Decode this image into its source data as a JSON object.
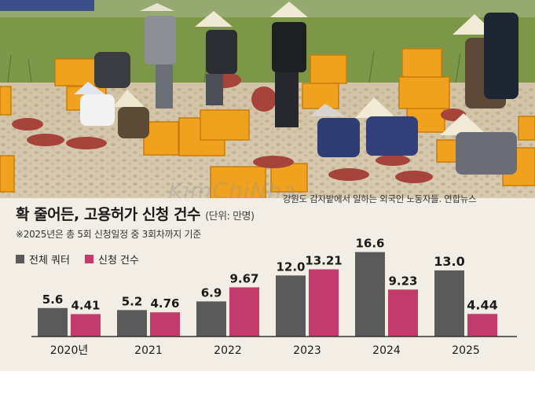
{
  "chart_data": {
    "type": "bar",
    "title": "확 줄어든, 고용허가 신청 건수",
    "unit_label": "(단위: 만명)",
    "subtitle": "※2025년은 총 5회 신청일정 중 3회차까지 기준",
    "categories": [
      "2020년",
      "2021",
      "2022",
      "2023",
      "2024",
      "2025"
    ],
    "series": [
      {
        "name": "전체 쿼터",
        "color": "#5a5a5a",
        "values": [
          5.6,
          5.2,
          6.9,
          12.0,
          16.6,
          13.0
        ],
        "value_labels": [
          "5.6",
          "5.2",
          "6.9",
          "12.0",
          "16.6",
          "13.0"
        ]
      },
      {
        "name": "신청 건수",
        "color": "#c23b6a",
        "values": [
          4.41,
          4.76,
          9.67,
          13.21,
          9.23,
          4.44
        ],
        "value_labels": [
          "4.41",
          "4.76",
          "9.67",
          "13.21",
          "9.23",
          "4.44"
        ]
      }
    ],
    "emphasized_category": "2025",
    "ylim": [
      0,
      17
    ],
    "grid": false,
    "legend_position": "top-left"
  },
  "photo": {
    "caption": "강원도 감자밭에서 일하는 외국인 노동자들.  연합뉴스",
    "watermark": "KimChiNha",
    "colors": {
      "field": "#c9b69a",
      "grass": "#6f8a3c",
      "crate": "#f0a21e",
      "basin": "#a6433a"
    }
  }
}
